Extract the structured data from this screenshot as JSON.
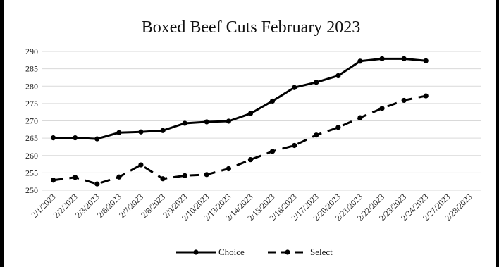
{
  "chart_data": {
    "type": "line",
    "title": "Boxed Beef Cuts February 2023",
    "xlabel": "",
    "ylabel": "",
    "ylim": [
      250,
      290
    ],
    "yticks": [
      250,
      255,
      260,
      265,
      270,
      275,
      280,
      285,
      290
    ],
    "grid": "horizontal",
    "legend": "bottom",
    "categories": [
      "2/1/2023",
      "2/2/2023",
      "2/3/2023",
      "2/6/2023",
      "2/7/2023",
      "2/8/2023",
      "2/9/2023",
      "2/10/2023",
      "2/13/2023",
      "2/14/2023",
      "2/15/2023",
      "2/16/2023",
      "2/17/2023",
      "2/20/2023",
      "2/21/2023",
      "2/22/2023",
      "2/23/2023",
      "2/24/2023",
      "2/27/2023",
      "2/28/2023"
    ],
    "series": [
      {
        "name": "Choice",
        "style": "solid",
        "color": "#000000",
        "values": [
          265.1,
          265.1,
          264.8,
          266.6,
          266.8,
          267.2,
          269.3,
          269.7,
          269.9,
          272.1,
          275.7,
          279.6,
          281.1,
          283.0,
          287.2,
          287.9,
          287.9,
          287.3,
          null,
          null
        ]
      },
      {
        "name": "Select",
        "style": "dashed",
        "color": "#000000",
        "values": [
          252.9,
          253.7,
          251.8,
          253.8,
          257.3,
          253.3,
          254.2,
          254.5,
          256.2,
          258.8,
          261.2,
          262.9,
          265.9,
          268.1,
          270.9,
          273.6,
          275.9,
          277.2,
          null,
          null
        ]
      }
    ]
  }
}
